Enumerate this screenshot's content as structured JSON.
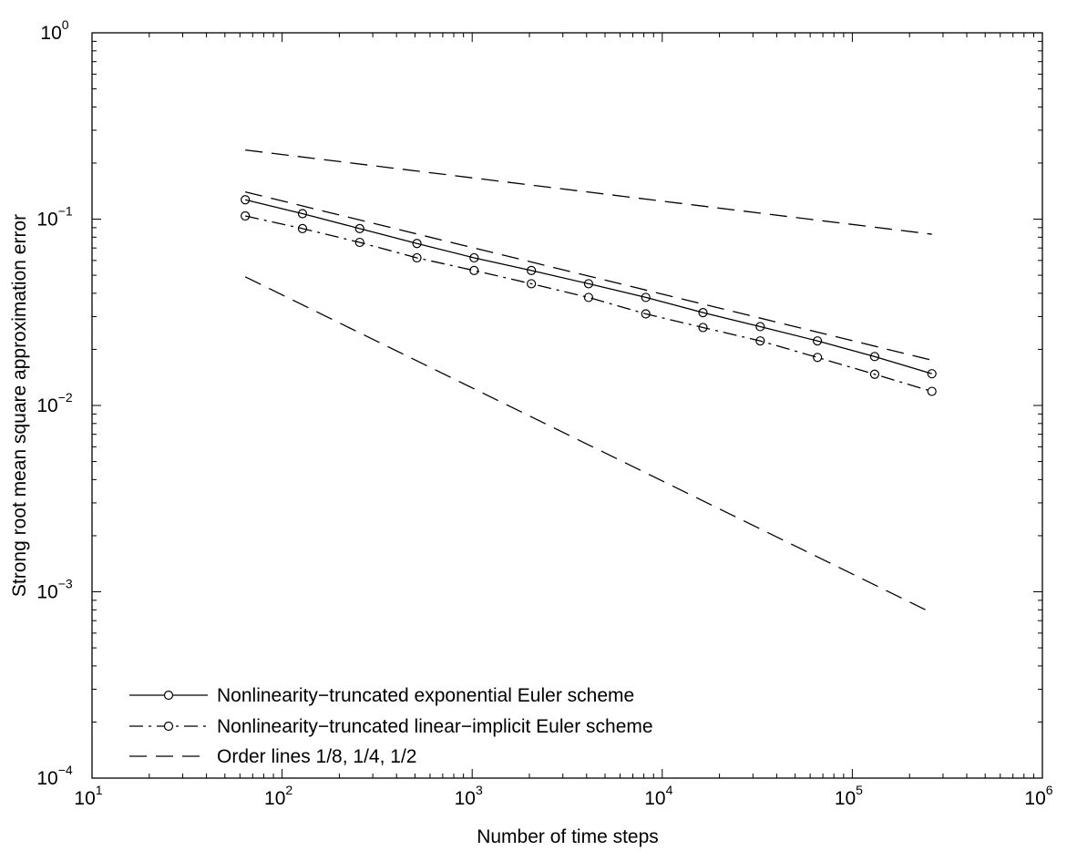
{
  "chart_data": {
    "type": "line",
    "xscale": "log",
    "yscale": "log",
    "xlim": [
      10,
      1000000
    ],
    "ylim": [
      0.0001,
      1
    ],
    "xlabel": "Number of time steps",
    "ylabel": "Strong root mean square approximation error",
    "grid": false,
    "legend_position": "bottom-left",
    "x_ticks": [
      {
        "base": "10",
        "exp": "1",
        "value": 10
      },
      {
        "base": "10",
        "exp": "2",
        "value": 100
      },
      {
        "base": "10",
        "exp": "3",
        "value": 1000
      },
      {
        "base": "10",
        "exp": "4",
        "value": 10000
      },
      {
        "base": "10",
        "exp": "5",
        "value": 100000
      },
      {
        "base": "10",
        "exp": "6",
        "value": 1000000
      }
    ],
    "y_ticks": [
      {
        "base": "10",
        "exp": "−4",
        "value": 0.0001
      },
      {
        "base": "10",
        "exp": "−3",
        "value": 0.001
      },
      {
        "base": "10",
        "exp": "−2",
        "value": 0.01
      },
      {
        "base": "10",
        "exp": "−1",
        "value": 0.1
      },
      {
        "base": "10",
        "exp": "0",
        "value": 1
      }
    ],
    "series": [
      {
        "name": "Nonlinearity−truncated exponential Euler scheme",
        "style": "solid",
        "marker": "circle",
        "color": "#000000",
        "x": [
          64,
          128,
          256,
          512,
          1024,
          2048,
          4096,
          8192,
          16384,
          32768,
          65536,
          131072,
          262144
        ],
        "y": [
          0.127,
          0.107,
          0.089,
          0.074,
          0.062,
          0.053,
          0.045,
          0.038,
          0.0315,
          0.0265,
          0.0222,
          0.0183,
          0.0148
        ]
      },
      {
        "name": "Nonlinearity−truncated linear−implicit Euler scheme",
        "style": "dashdot",
        "marker": "circle",
        "color": "#000000",
        "x": [
          64,
          128,
          256,
          512,
          1024,
          2048,
          4096,
          8192,
          16384,
          32768,
          65536,
          131072,
          262144
        ],
        "y": [
          0.104,
          0.089,
          0.075,
          0.062,
          0.053,
          0.045,
          0.038,
          0.031,
          0.0262,
          0.0222,
          0.0181,
          0.0147,
          0.0119
        ]
      },
      {
        "name": "Order lines 1/8, 1/4, 1/2",
        "style": "dashed",
        "marker": "none",
        "color": "#000000",
        "lines": [
          {
            "order": "1/8",
            "x": [
              64,
              262144
            ],
            "y": [
              0.235,
              0.083
            ]
          },
          {
            "order": "1/4",
            "x": [
              64,
              262144
            ],
            "y": [
              0.14,
              0.0175
            ]
          },
          {
            "order": "1/2",
            "x": [
              64,
              262144
            ],
            "y": [
              0.049,
              0.00077
            ]
          }
        ]
      }
    ]
  }
}
